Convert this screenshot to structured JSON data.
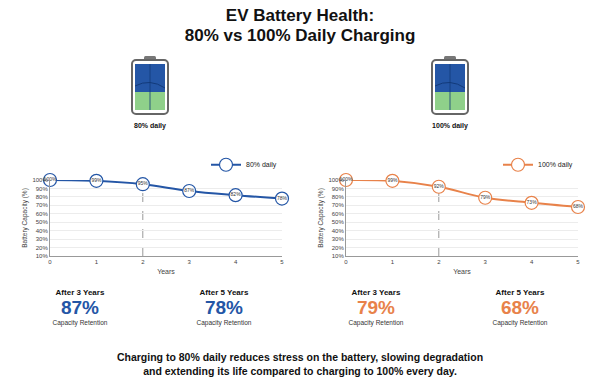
{
  "title": [
    "EV Battery Health:",
    "80% vs 100% Daily Charging"
  ],
  "panels": [
    {
      "battery_label": "80% daily",
      "stats": [
        {
          "label": "After 3 Years",
          "value": "87%",
          "caption": "Capacity Retention"
        },
        {
          "label": "After 5 Years",
          "value": "78%",
          "caption": "Capacity Retention"
        }
      ]
    },
    {
      "battery_label": "100% daily",
      "stats": [
        {
          "label": "After 3 Years",
          "value": "79%",
          "caption": "Capacity Retention"
        },
        {
          "label": "After 5 Years",
          "value": "68%",
          "caption": "Capacity Retention"
        }
      ]
    }
  ],
  "chart_data": [
    {
      "type": "line",
      "x": [
        0,
        1,
        2,
        3,
        4,
        5
      ],
      "series": [
        {
          "name": "80% daily",
          "color": "#2456a6",
          "marker": "circle",
          "line_style": "solid",
          "values": [
            100,
            99,
            95,
            87,
            82,
            78
          ],
          "value_labels": [
            "100%",
            "99%",
            "95%",
            "87%",
            "82%",
            "78%"
          ]
        }
      ],
      "x_label": "Years",
      "y_label": "Battery Capacity (%)",
      "xlim": [
        0,
        5
      ],
      "xticks": [
        0,
        1,
        2,
        3,
        4,
        5
      ],
      "ylim": [
        10,
        100
      ],
      "yticks": [
        {
          "value": 10,
          "label": "10%"
        },
        {
          "value": 20,
          "label": "20%"
        },
        {
          "value": 30,
          "label": "30%"
        },
        {
          "value": 40,
          "label": "40%"
        },
        {
          "value": 50,
          "label": "50%"
        },
        {
          "value": 60,
          "label": "60%"
        },
        {
          "value": 70,
          "label": "70%"
        },
        {
          "value": 80,
          "label": "80%"
        },
        {
          "value": 90,
          "label": "90%"
        },
        {
          "value": 100,
          "label": "100%"
        }
      ],
      "highlight_x": 2,
      "grid": true,
      "legend": "upper right",
      "data_labels": true
    },
    {
      "type": "line",
      "x": [
        0,
        1,
        2,
        3,
        4,
        5
      ],
      "series": [
        {
          "name": "100% daily",
          "color": "#e8824a",
          "marker": "circle",
          "line_style": "solid",
          "values": [
            100,
            99,
            92,
            79,
            73,
            68
          ],
          "value_labels": [
            "100%",
            "99%",
            "92%",
            "79%",
            "73%",
            "68%"
          ]
        }
      ],
      "x_label": "Years",
      "y_label": "Battery Capacity (%)",
      "xlim": [
        0,
        5
      ],
      "xticks": [
        0,
        1,
        2,
        3,
        4,
        5
      ],
      "ylim": [
        10,
        100
      ],
      "yticks": [
        {
          "value": 10,
          "label": "10%"
        },
        {
          "value": 20,
          "label": "20%"
        },
        {
          "value": 30,
          "label": "30%"
        },
        {
          "value": 40,
          "label": "40%"
        },
        {
          "value": 50,
          "label": "50%"
        },
        {
          "value": 60,
          "label": "60%"
        },
        {
          "value": 70,
          "label": "70%"
        },
        {
          "value": 80,
          "label": "80%"
        },
        {
          "value": 90,
          "label": "90%"
        },
        {
          "value": 100,
          "label": "100%"
        }
      ],
      "highlight_x": 2,
      "grid": true,
      "legend": "upper right",
      "data_labels": true
    }
  ],
  "footer": [
    "Charging to 80% daily reduces stress on the battery, slowing degradation",
    "and extending its life compared to charging to 100% every day."
  ]
}
